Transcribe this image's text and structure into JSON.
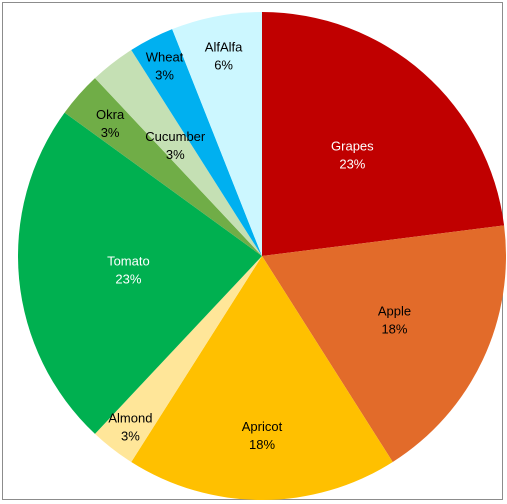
{
  "chart_data": {
    "type": "pie",
    "title": "",
    "start_angle_deg": 0,
    "direction": "clockwise",
    "slices": [
      {
        "label": "Grapes",
        "value": 23,
        "value_label": "23%",
        "color": "#c00000",
        "text_color": "#ffffff"
      },
      {
        "label": "Apple",
        "value": 18,
        "value_label": "18%",
        "color": "#e26b2a",
        "text_color": "#000000"
      },
      {
        "label": "Apricot",
        "value": 18,
        "value_label": "18%",
        "color": "#ffc000",
        "text_color": "#000000"
      },
      {
        "label": "Almond",
        "value": 3,
        "value_label": "3%",
        "color": "#ffe699",
        "text_color": "#000000"
      },
      {
        "label": "Tomato",
        "value": 23,
        "value_label": "23%",
        "color": "#00b050",
        "text_color": "#ffffff"
      },
      {
        "label": "Okra",
        "value": 3,
        "value_label": "3%",
        "color": "#70ad47",
        "text_color": "#000000"
      },
      {
        "label": "Cucumber",
        "value": 3,
        "value_label": "3%",
        "color": "#c5e0b4",
        "text_color": "#000000"
      },
      {
        "label": "Wheat",
        "value": 3,
        "value_label": "3%",
        "color": "#00b0f0",
        "text_color": "#000000"
      },
      {
        "label": "AlfAlfa",
        "value": 6,
        "value_label": "6%",
        "color": "#ccf7ff",
        "text_color": "#000000"
      }
    ]
  }
}
